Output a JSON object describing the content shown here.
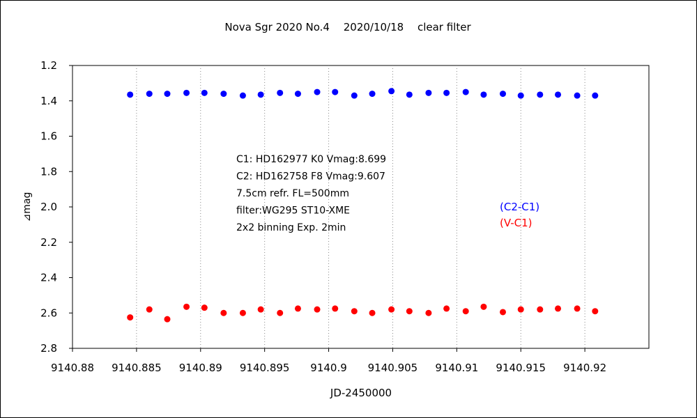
{
  "chart_data": {
    "type": "scatter",
    "title": "Nova Sgr 2020 No.4　 2020/10/18　 clear filter",
    "xlabel": "JD-2450000",
    "ylabel": "⊿mag",
    "xlim": [
      9140.88,
      9140.925
    ],
    "ylim": [
      1.2,
      2.8
    ],
    "y_inverted": true,
    "x_ticks": [
      9140.88,
      9140.885,
      9140.89,
      9140.895,
      9140.9,
      9140.905,
      9140.91,
      9140.915,
      9140.92
    ],
    "x_tick_labels": [
      "9140.88",
      "9140.885",
      "9140.89",
      "9140.895",
      "9140.9",
      "9140.905",
      "9140.91",
      "9140.915",
      "9140.92"
    ],
    "y_ticks": [
      1.2,
      1.4,
      1.6,
      1.8,
      2.0,
      2.2,
      2.4,
      2.6,
      2.8
    ],
    "y_tick_labels": [
      "1.2",
      "1.4",
      "1.6",
      "1.8",
      "2.0",
      "2.2",
      "2.4",
      "2.6",
      "2.8"
    ],
    "grid": "vertical dotted",
    "legend_position": "middle-right",
    "annotations": [
      "C1: HD162977 K0 Vmag:8.699",
      "C2: HD162758 F8 Vmag:9.607",
      "7.5cm refr. FL=500mm",
      "filter:WG295  ST10-XME",
      "2x2 binning  Exp. 2min"
    ],
    "series": [
      {
        "name": "(C2-C1)",
        "color": "#0000ff",
        "x": [
          9140.8845,
          9140.886,
          9140.8874,
          9140.8889,
          9140.8903,
          9140.8918,
          9140.8933,
          9140.8947,
          9140.8962,
          9140.8976,
          9140.8991,
          9140.9005,
          9140.902,
          9140.9034,
          9140.9049,
          9140.9063,
          9140.9078,
          9140.9092,
          9140.9107,
          9140.9121,
          9140.9136,
          9140.915,
          9140.9165,
          9140.9179,
          9140.9194,
          9140.9208
        ],
        "y": [
          1.365,
          1.36,
          1.36,
          1.355,
          1.355,
          1.36,
          1.37,
          1.365,
          1.355,
          1.36,
          1.35,
          1.35,
          1.37,
          1.36,
          1.345,
          1.365,
          1.355,
          1.355,
          1.35,
          1.365,
          1.36,
          1.37,
          1.365,
          1.365,
          1.37,
          1.37
        ]
      },
      {
        "name": "(V-C1)",
        "color": "#ff0000",
        "x": [
          9140.8845,
          9140.886,
          9140.8874,
          9140.8889,
          9140.8903,
          9140.8918,
          9140.8933,
          9140.8947,
          9140.8962,
          9140.8976,
          9140.8991,
          9140.9005,
          9140.902,
          9140.9034,
          9140.9049,
          9140.9063,
          9140.9078,
          9140.9092,
          9140.9107,
          9140.9121,
          9140.9136,
          9140.915,
          9140.9165,
          9140.9179,
          9140.9194,
          9140.9208
        ],
        "y": [
          2.625,
          2.58,
          2.635,
          2.565,
          2.57,
          2.6,
          2.6,
          2.58,
          2.6,
          2.575,
          2.58,
          2.575,
          2.59,
          2.6,
          2.58,
          2.59,
          2.6,
          2.575,
          2.59,
          2.565,
          2.595,
          2.58,
          2.58,
          2.575,
          2.575,
          2.59
        ]
      }
    ]
  }
}
